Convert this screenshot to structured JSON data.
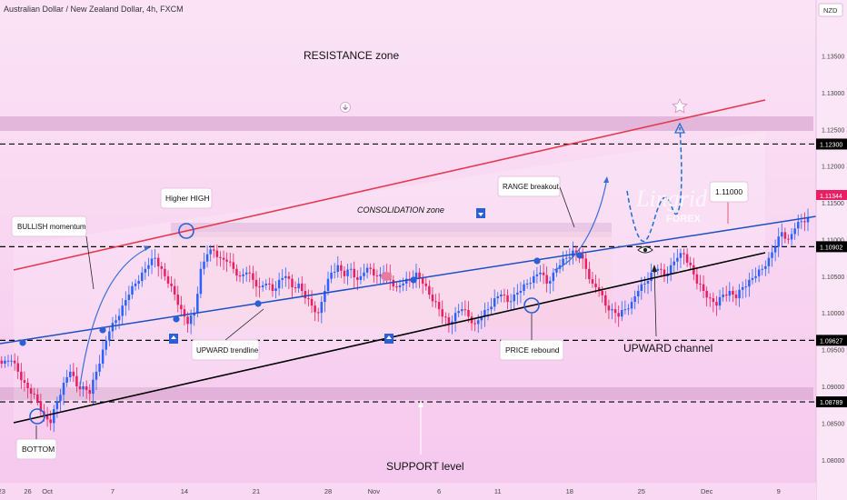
{
  "header": {
    "title": "Australian Dollar / New Zealand Dollar, 4h, FXCM"
  },
  "chart_data": {
    "type": "candlestick",
    "title": "Australian Dollar / New Zealand Dollar, 4h, FXCM",
    "currency": "NZD",
    "price_axis": {
      "min": 1.077,
      "max": 1.142,
      "ticks": [
        1.08,
        1.085,
        1.09,
        1.095,
        1.1,
        1.105,
        1.11,
        1.115,
        1.12,
        1.125,
        1.13,
        1.135
      ],
      "tick_labels": [
        "1.08000",
        "1.08500",
        "1.09000",
        "1.09500",
        "1.10000",
        "1.10500",
        "1.11000",
        "1.11500",
        "1.12000",
        "1.12500",
        "1.13000",
        "1.13500"
      ]
    },
    "time_axis": {
      "labels": [
        {
          "text": "23",
          "bar": 0
        },
        {
          "text": "26",
          "bar": 8
        },
        {
          "text": "Oct",
          "bar": 14
        },
        {
          "text": "7",
          "bar": 34
        },
        {
          "text": "14",
          "bar": 56
        },
        {
          "text": "21",
          "bar": 78
        },
        {
          "text": "28",
          "bar": 100
        },
        {
          "text": "Nov",
          "bar": 114
        },
        {
          "text": "6",
          "bar": 134
        },
        {
          "text": "11",
          "bar": 152
        },
        {
          "text": "18",
          "bar": 174
        },
        {
          "text": "25",
          "bar": 196
        },
        {
          "text": "Dec",
          "bar": 216
        },
        {
          "text": "9",
          "bar": 238
        }
      ],
      "total_bars": 250
    },
    "current_price": "1.11344",
    "levels": [
      {
        "price": 1.123,
        "label": "1.12300",
        "color": "#000000"
      },
      {
        "price": 1.10902,
        "label": "1.10902",
        "color": "#000000"
      },
      {
        "price": 1.09627,
        "label": "1.09627",
        "color": "#000000"
      },
      {
        "price": 1.08789,
        "label": "1.08789",
        "color": "#000000"
      }
    ],
    "target_label": "1.11000",
    "closes": [
      1.0935,
      1.0935,
      1.092,
      1.0905,
      1.089,
      1.088,
      1.086,
      1.085,
      1.088,
      1.0905,
      1.092,
      1.09,
      1.09,
      1.089,
      1.092,
      1.095,
      1.0975,
      1.099,
      1.101,
      1.1025,
      1.104,
      1.1055,
      1.1065,
      1.1075,
      1.106,
      1.104,
      1.1025,
      1.1005,
      1.0985,
      1.1,
      1.106,
      1.108,
      1.1085,
      1.1075,
      1.107,
      1.106,
      1.105,
      1.1055,
      1.1045,
      1.1035,
      1.104,
      1.103,
      1.1045,
      1.105,
      1.1035,
      1.104,
      1.102,
      1.101,
      1.1,
      1.103,
      1.1055,
      1.1065,
      1.105,
      1.106,
      1.1045,
      1.1055,
      1.106,
      1.105,
      1.1055,
      1.1045,
      1.1035,
      1.104,
      1.1045,
      1.1055,
      1.104,
      1.1025,
      1.1015,
      1.0995,
      1.0985,
      1.1,
      1.1005,
      1.0995,
      1.0985,
      1.0995,
      1.1005,
      1.102,
      1.1025,
      1.1015,
      1.1025,
      1.103,
      1.104,
      1.105,
      1.1055,
      1.104,
      1.1055,
      1.1065,
      1.1075,
      1.1085,
      1.108,
      1.106,
      1.104,
      1.103,
      1.101,
      1.1005,
      1.0995,
      1.1005,
      1.1015,
      1.103,
      1.104,
      1.1055,
      1.106,
      1.105,
      1.1065,
      1.1075,
      1.108,
      1.1065,
      1.104,
      1.103,
      1.102,
      1.101,
      1.1025,
      1.103,
      1.102,
      1.1035,
      1.1045,
      1.105,
      1.106,
      1.1075,
      1.109,
      1.111,
      1.11,
      1.1115,
      1.1125,
      1.113
    ],
    "projection": "bearish-retest-then-rally"
  },
  "annotations": {
    "resistance_zone": "RESISTANCE zone",
    "consolidation_zone": "CONSOLIDATION zone",
    "bullish_momentum": "BULLISH momentum",
    "higher_high": "Higher HIGH",
    "upward_trendline": "UPWARD trendline",
    "range_breakout": "RANGE breakout",
    "price_rebound": "PRICE rebound",
    "upward_channel": "UPWARD channel",
    "support_level": "SUPPORT level",
    "bottom": "BOTTOM"
  },
  "watermark": {
    "brand": "Lingrid",
    "sub": "FOREX"
  },
  "colors": {
    "up": "#2962ff",
    "down": "#e91e63",
    "trend": "#1565c0",
    "channel_top": "#e53950",
    "channel_bottom": "#000000",
    "zone": "#d9b3d3"
  }
}
